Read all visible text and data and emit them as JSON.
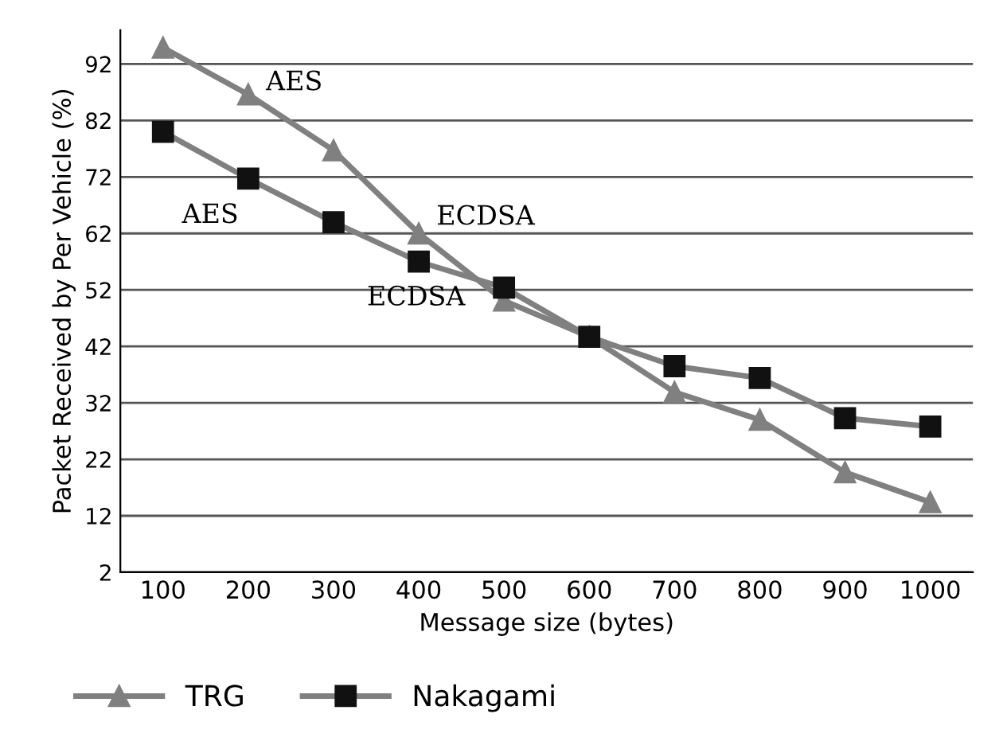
{
  "chart_data": {
    "type": "line",
    "xlabel": "Message size (bytes)",
    "ylabel": "Packet Received by Per Vehicle (%)",
    "categories": [
      "100",
      "200",
      "300",
      "400",
      "500",
      "600",
      "700",
      "800",
      "900",
      "1000"
    ],
    "series": [
      {
        "name": "TRG",
        "color": "#808080",
        "marker": "triangle",
        "values": [
          94.9,
          86.6,
          76.7,
          62.0,
          50.1,
          43.7,
          33.9,
          29.0,
          19.7,
          14.4
        ]
      },
      {
        "name": "Nakagami",
        "color": "#111111",
        "marker": "square",
        "values": [
          80.0,
          71.7,
          64.0,
          57.0,
          52.4,
          43.7,
          38.5,
          36.4,
          29.3,
          27.8
        ]
      }
    ],
    "ylim": [
      2,
      98
    ],
    "yticks": [
      2,
      12,
      22,
      32,
      42,
      52,
      62,
      72,
      82,
      92
    ],
    "grid": "y",
    "legend": "bottom",
    "annotations": [
      {
        "text": "AES",
        "x": "200",
        "y": 86.6
      },
      {
        "text": "ECDSA",
        "x": "400",
        "y": 62.0
      },
      {
        "text": "AES",
        "x": "200",
        "y": 71.7
      },
      {
        "text": "ECDSA",
        "x": "500",
        "y": 52.4
      }
    ]
  }
}
